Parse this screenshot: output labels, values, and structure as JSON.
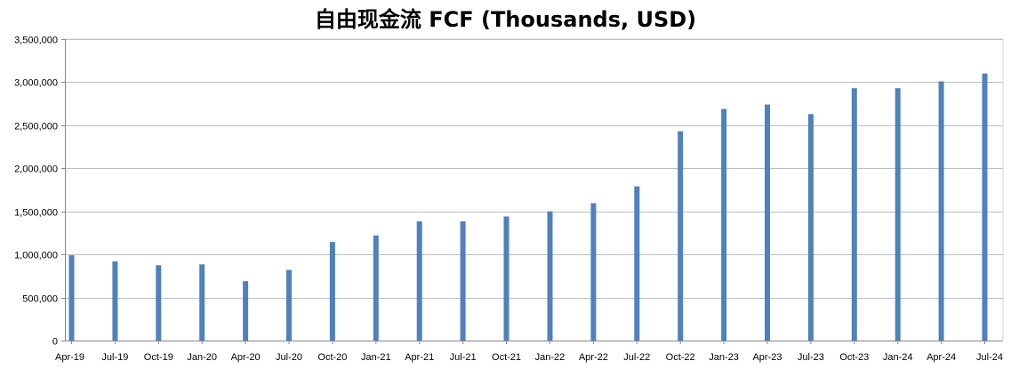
{
  "chart_data": {
    "type": "bar",
    "title": "自由现金流 FCF (Thousands, USD)",
    "xlabel": "",
    "ylabel": "",
    "ylim": [
      0,
      3500000
    ],
    "yticks": [
      0,
      500000,
      1000000,
      1500000,
      2000000,
      2500000,
      3000000,
      3500000
    ],
    "ytick_labels": [
      "0",
      "500,000",
      "1,000,000",
      "1,500,000",
      "2,000,000",
      "2,500,000",
      "3,000,000",
      "3,500,000"
    ],
    "grid": true,
    "legend": "none",
    "bar_color": "#4f81bd",
    "categories": [
      "Apr-19",
      "Jul-19",
      "Oct-19",
      "Jan-20",
      "Apr-20",
      "Jul-20",
      "Oct-20",
      "Jan-21",
      "Apr-21",
      "Jul-21",
      "Oct-21",
      "Jan-22",
      "Apr-22",
      "Jul-22",
      "Oct-22",
      "Jan-23",
      "Apr-23",
      "Jul-23",
      "Oct-23",
      "Jan-24",
      "Apr-24",
      "Jul-24"
    ],
    "values": [
      990000,
      920000,
      875000,
      885000,
      690000,
      820000,
      1145000,
      1220000,
      1385000,
      1385000,
      1440000,
      1500000,
      1595000,
      1790000,
      2430000,
      2690000,
      2740000,
      2630000,
      2930000,
      2930000,
      3010000,
      3100000
    ]
  }
}
